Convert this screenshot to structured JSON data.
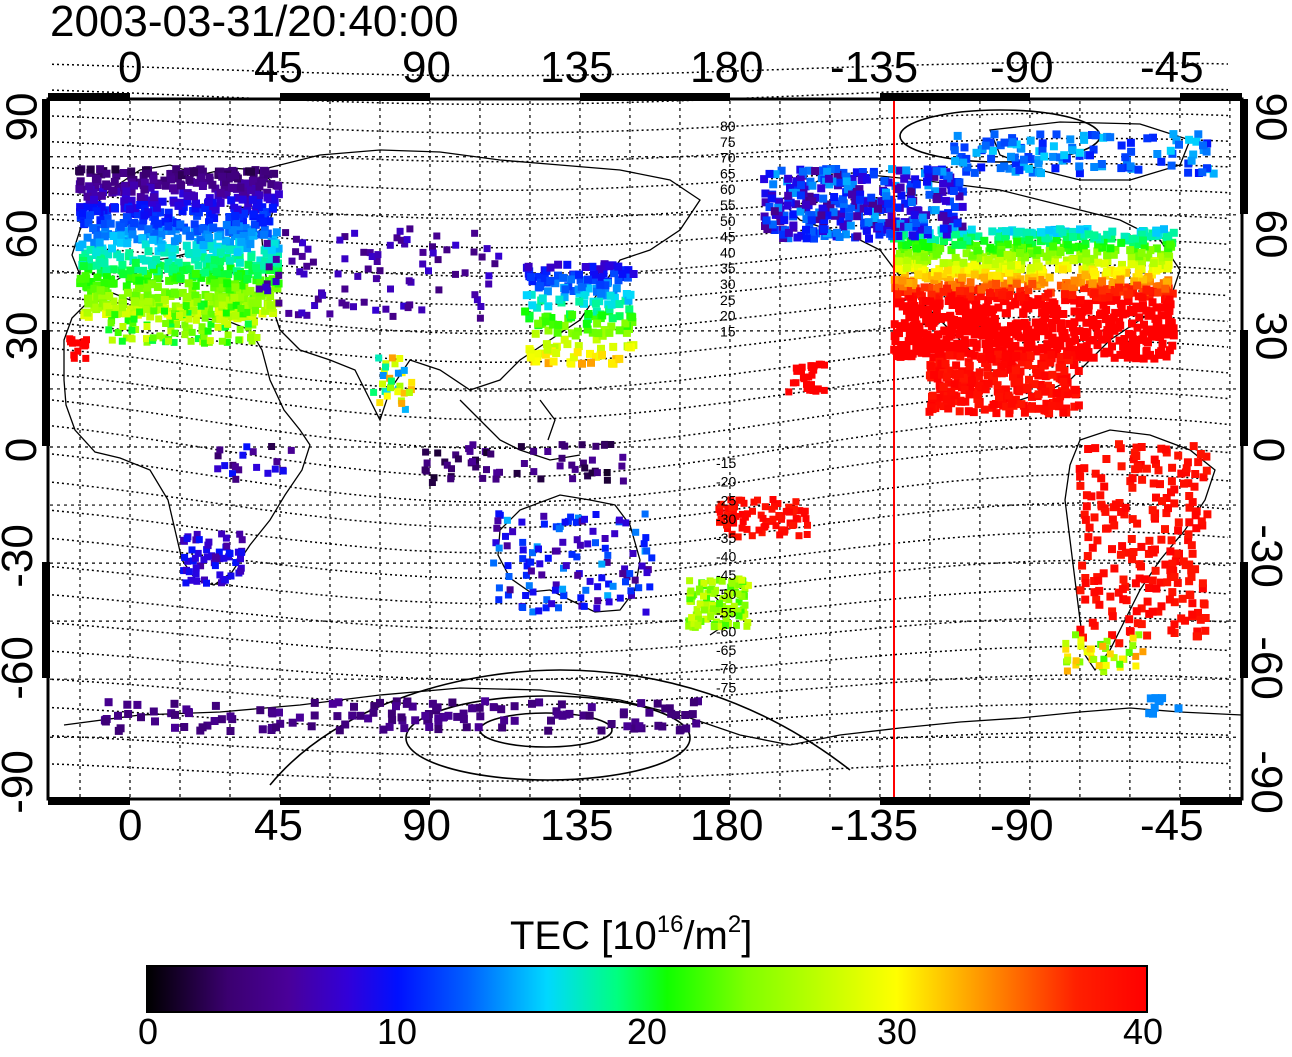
{
  "title": "2003-03-31/20:40:00",
  "map": {
    "x_ticks": [
      "0",
      "45",
      "90",
      "135",
      "180",
      "-135",
      "-90",
      "-45"
    ],
    "y_ticks": [
      "90",
      "60",
      "30",
      "0",
      "-30",
      "-60",
      "-90"
    ],
    "contour_labels_north": [
      "80",
      "75",
      "70",
      "65",
      "60",
      "55",
      "50",
      "45",
      "40",
      "35",
      "30",
      "25",
      "20",
      "15"
    ],
    "contour_labels_south": [
      "-15",
      "-20",
      "-25",
      "-30",
      "-35",
      "-40",
      "-45",
      "-50",
      "-55",
      "-60",
      "-65",
      "-70",
      "-75"
    ],
    "terminator_longitude": -138
  },
  "colorbar": {
    "label_prefix": "TEC  [10",
    "label_exp": "16",
    "label_mid": "/m",
    "label_exp2": "2",
    "label_suffix": "]",
    "ticks": [
      "0",
      "10",
      "20",
      "30",
      "40"
    ]
  },
  "colors": {
    "terminator": "#ff0000",
    "frame": "#000000"
  }
}
